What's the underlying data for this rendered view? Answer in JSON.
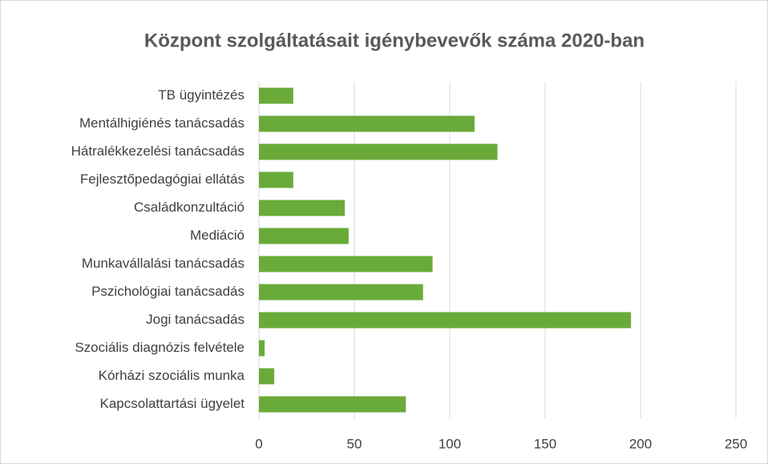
{
  "chart_data": {
    "type": "bar",
    "orientation": "horizontal",
    "title": "Központ szolgáltatásait igénybevevők száma 2020-ban",
    "categories": [
      "TB ügyintézés",
      "Mentálhigiénés tanácsadás",
      "Hátralékkezelési tanácsadás",
      "Fejlesztőpedagógiai ellátás",
      "Családkonzultáció",
      "Mediáció",
      "Munkavállalási tanácsadás",
      "Pszichológiai tanácsadás",
      "Jogi tanácsadás",
      "Szociális diagnózis felvétele",
      "Kórházi szociális munka",
      "Kapcsolattartási ügyelet"
    ],
    "values": [
      18,
      113,
      125,
      18,
      45,
      47,
      91,
      86,
      195,
      3,
      8,
      77
    ],
    "color": "#6aaa3a",
    "xlim": [
      0,
      250
    ],
    "xticks": [
      0,
      50,
      100,
      150,
      200,
      250
    ],
    "grid": true
  }
}
